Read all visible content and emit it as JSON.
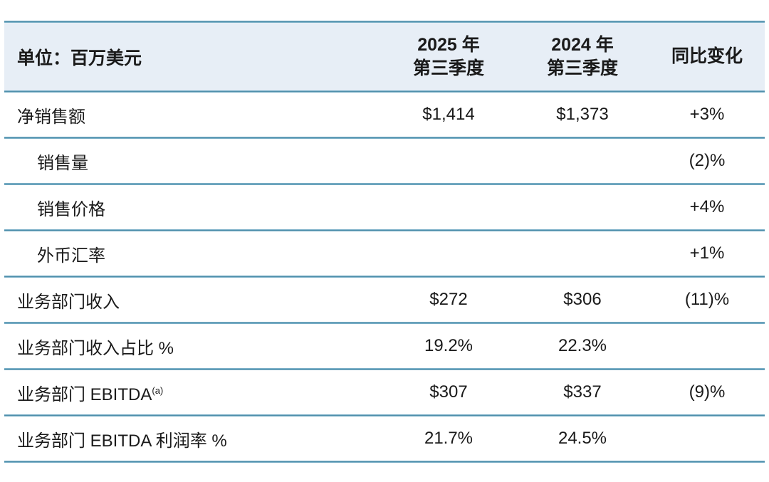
{
  "colors": {
    "header_bg": "#e7eef6",
    "divider_core": "#4f8fab",
    "divider_edge": "#b7dcec",
    "text": "#1a1a1a"
  },
  "header": {
    "unit_label": "单位：百万美元",
    "col_2025": {
      "line1": "2025 年",
      "line2": "第三季度"
    },
    "col_2024": {
      "line1": "2024 年",
      "line2": "第三季度"
    },
    "col_yoy": "同比变化"
  },
  "table": {
    "rows": [
      {
        "label": "净销售额",
        "indent": false,
        "q3_2025": "$1,414",
        "q3_2024": "$1,373",
        "yoy": "+3%"
      },
      {
        "label": "销售量",
        "indent": true,
        "q3_2025": "",
        "q3_2024": "",
        "yoy": "(2)%"
      },
      {
        "label": "销售价格",
        "indent": true,
        "q3_2025": "",
        "q3_2024": "",
        "yoy": "+4%"
      },
      {
        "label": "外币汇率",
        "indent": true,
        "q3_2025": "",
        "q3_2024": "",
        "yoy": "+1%"
      },
      {
        "label": "业务部门收入",
        "indent": false,
        "q3_2025": "$272",
        "q3_2024": "$306",
        "yoy": "(11)%"
      },
      {
        "label": "业务部门收入占比 %",
        "indent": false,
        "q3_2025": "19.2%",
        "q3_2024": "22.3%",
        "yoy": ""
      },
      {
        "label": "业务部门 EBITDA",
        "superscript": "(a)",
        "indent": false,
        "q3_2025": "$307",
        "q3_2024": "$337",
        "yoy": "(9)%"
      },
      {
        "label": "业务部门 EBITDA 利润率 %",
        "indent": false,
        "q3_2025": "21.7%",
        "q3_2024": "24.5%",
        "yoy": ""
      }
    ]
  },
  "chart_data": {
    "type": "table",
    "title": "单位：百万美元",
    "columns": [
      "单位：百万美元",
      "2025 年第三季度",
      "2024 年第三季度",
      "同比变化"
    ],
    "rows": [
      [
        "净销售额",
        "$1,414",
        "$1,373",
        "+3%"
      ],
      [
        "销售量",
        "",
        "",
        "(2)%"
      ],
      [
        "销售价格",
        "",
        "",
        "+4%"
      ],
      [
        "外币汇率",
        "",
        "",
        "+1%"
      ],
      [
        "业务部门收入",
        "$272",
        "$306",
        "(11)%"
      ],
      [
        "业务部门收入占比 %",
        "19.2%",
        "22.3%",
        ""
      ],
      [
        "业务部门 EBITDA(a)",
        "$307",
        "$337",
        "(9)%"
      ],
      [
        "业务部门 EBITDA 利润率 %",
        "21.7%",
        "24.5%",
        ""
      ]
    ]
  }
}
